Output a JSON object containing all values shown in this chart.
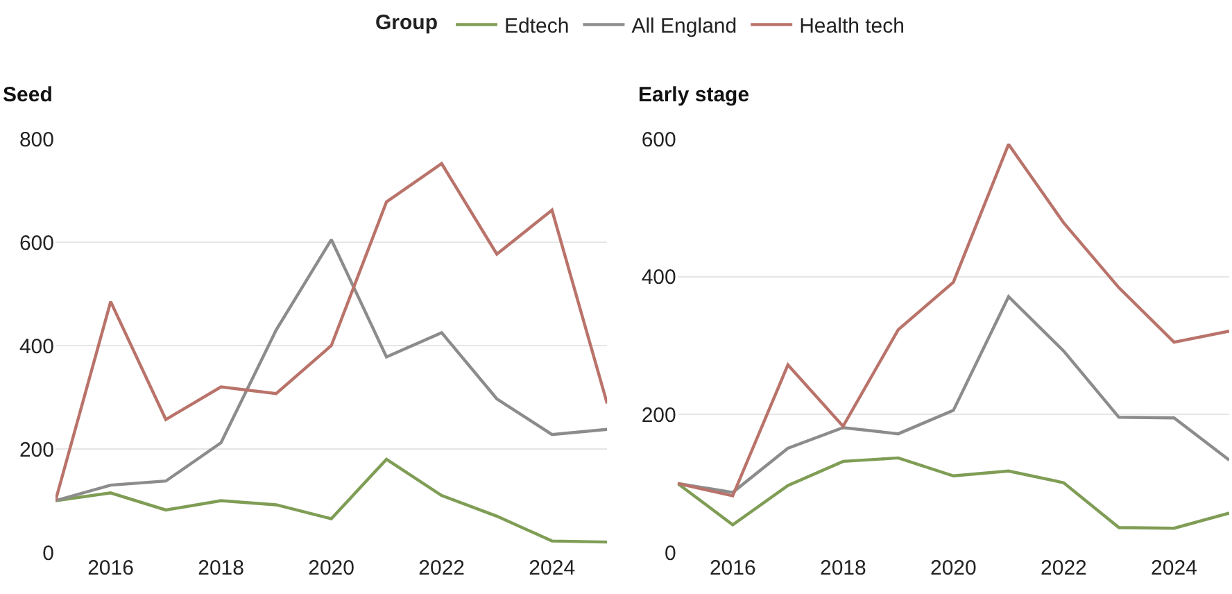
{
  "chart_data": [
    {
      "type": "line",
      "title": "Seed",
      "legend_title": "Group",
      "legend": "top",
      "grid": "y",
      "x": [
        2015,
        2016,
        2017,
        2018,
        2019,
        2020,
        2021,
        2022,
        2023,
        2024,
        2025
      ],
      "xlim": [
        2015,
        2025
      ],
      "xticks": [
        2016,
        2018,
        2020,
        2022,
        2024
      ],
      "ylim": [
        0,
        800
      ],
      "yticks": [
        0,
        200,
        400,
        600,
        800
      ],
      "series": [
        {
          "name": "Edtech",
          "color": "#7f9d55",
          "values": [
            100,
            115,
            82,
            100,
            92,
            65,
            180,
            110,
            70,
            22,
            20
          ]
        },
        {
          "name": "All England",
          "color": "#8c8c8c",
          "values": [
            100,
            130,
            138,
            212,
            430,
            605,
            378,
            425,
            297,
            228,
            238
          ]
        },
        {
          "name": "Health tech",
          "color": "#b9736a",
          "values": [
            100,
            485,
            257,
            320,
            307,
            400,
            678,
            752,
            577,
            662,
            288
          ]
        }
      ]
    },
    {
      "type": "line",
      "title": "Early stage",
      "legend": false,
      "grid": "y",
      "x": [
        2015,
        2016,
        2017,
        2018,
        2019,
        2020,
        2021,
        2022,
        2023,
        2024,
        2025
      ],
      "xlim": [
        2015,
        2025
      ],
      "xticks": [
        2016,
        2018,
        2020,
        2022,
        2024
      ],
      "ylim": [
        0,
        600
      ],
      "yticks": [
        0,
        200,
        400,
        600
      ],
      "series": [
        {
          "color": "#7f9d55",
          "values": [
            100,
            40,
            97,
            132,
            137,
            111,
            118,
            101,
            36,
            35,
            57
          ]
        },
        {
          "color": "#8c8c8c",
          "values": [
            100,
            87,
            151,
            181,
            172,
            206,
            371,
            292,
            196,
            195,
            134
          ]
        },
        {
          "color": "#b9736a",
          "values": [
            100,
            82,
            272,
            183,
            323,
            392,
            592,
            478,
            384,
            305,
            321
          ]
        }
      ]
    }
  ]
}
